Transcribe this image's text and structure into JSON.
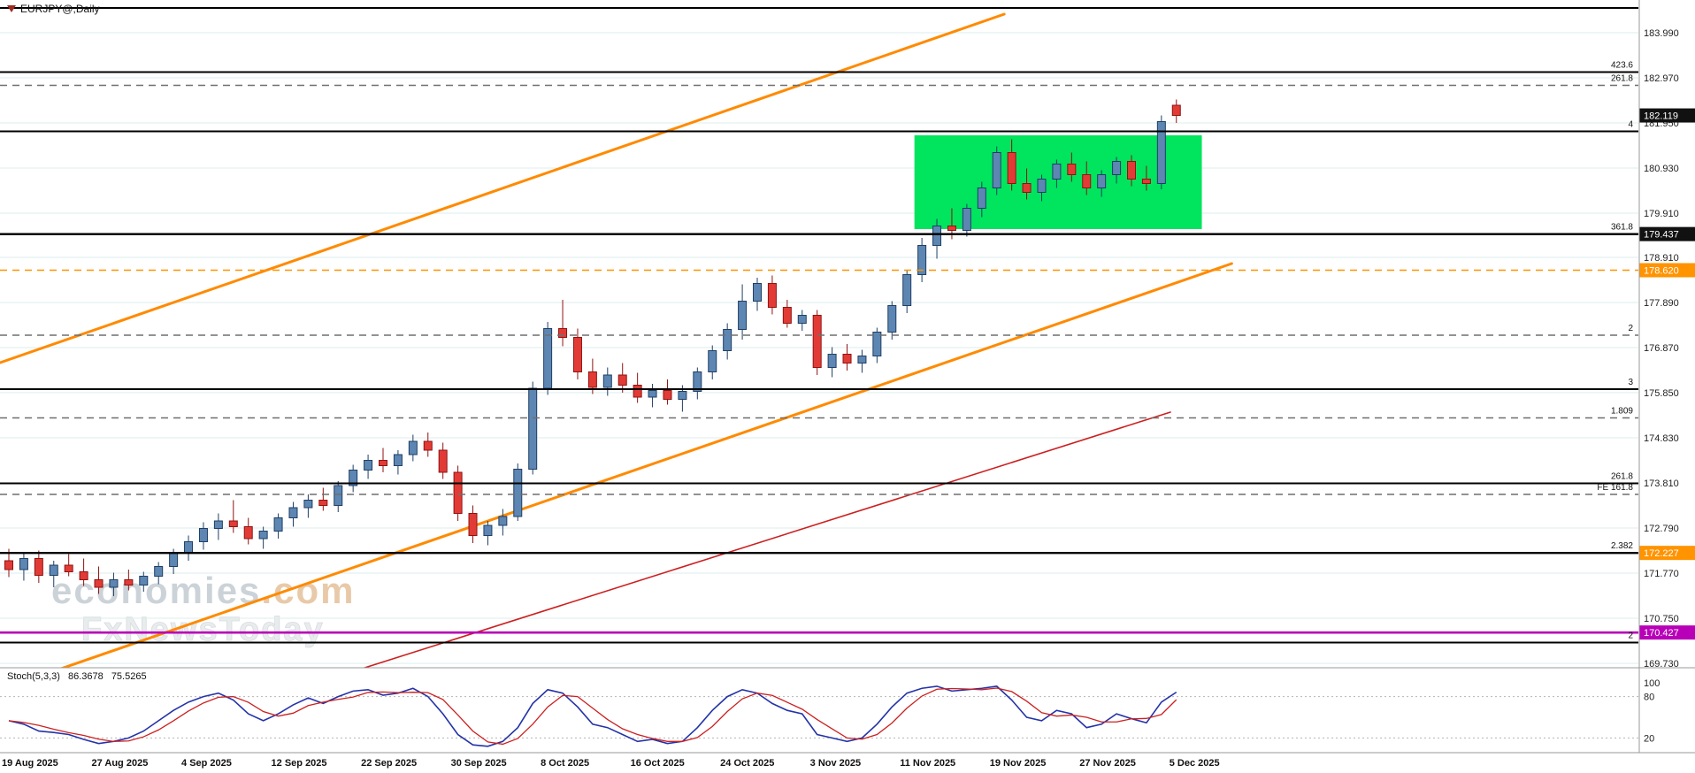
{
  "window": {
    "symbol_label": "EURJPY@,Daily"
  },
  "watermark": {
    "brand": "economies",
    "brand_suffix": ".com",
    "tagline": "FxNewsToday"
  },
  "colors": {
    "bull": "#5d86b3",
    "bullBorder": "#1f3f63",
    "bear": "#e23b36",
    "bearBorder": "#8f1310",
    "trendOrange": "#ff8a00",
    "trendRed": "#cc2020",
    "grid": "#ddeeee",
    "stochK": "#2433a8",
    "stochD": "#cc2020",
    "badgeBlack": "#111111",
    "badgeOrange": "#ff9300",
    "badgeMagenta": "#b800b8"
  },
  "chart_data": {
    "type": "candlestick",
    "symbol": "EURJPY@",
    "timeframe": "Daily",
    "ylim": [
      169.63,
      184.73
    ],
    "x_labels": [
      "19 Aug 2025",
      "27 Aug 2025",
      "4 Sep 2025",
      "12 Sep 2025",
      "22 Sep 2025",
      "30 Sep 2025",
      "8 Oct 2025",
      "16 Oct 2025",
      "24 Oct 2025",
      "3 Nov 2025",
      "11 Nov 2025",
      "19 Nov 2025",
      "27 Nov 2025",
      "5 Dec 2025"
    ],
    "x_label_step": 6,
    "price_ticks": [
      "183.990",
      "182.970",
      "181.950",
      "180.930",
      "179.910",
      "178.910",
      "177.890",
      "176.870",
      "175.850",
      "174.830",
      "173.810",
      "172.790",
      "171.770",
      "170.750",
      "169.730"
    ],
    "price_tick_values": [
      183.99,
      182.97,
      181.95,
      180.93,
      179.91,
      178.91,
      177.89,
      176.87,
      175.85,
      174.83,
      173.81,
      172.79,
      171.77,
      170.75,
      169.73
    ],
    "candles": [
      [
        172.05,
        172.32,
        171.68,
        171.85
      ],
      [
        171.85,
        172.22,
        171.6,
        172.1
      ],
      [
        172.1,
        172.28,
        171.55,
        171.72
      ],
      [
        171.72,
        172.05,
        171.45,
        171.95
      ],
      [
        171.95,
        172.2,
        171.7,
        171.8
      ],
      [
        171.8,
        172.1,
        171.48,
        171.62
      ],
      [
        171.62,
        171.92,
        171.3,
        171.45
      ],
      [
        171.45,
        171.78,
        171.25,
        171.62
      ],
      [
        171.62,
        171.85,
        171.38,
        171.5
      ],
      [
        171.5,
        171.8,
        171.35,
        171.7
      ],
      [
        171.7,
        172.02,
        171.52,
        171.92
      ],
      [
        171.92,
        172.32,
        171.75,
        172.22
      ],
      [
        172.22,
        172.62,
        172.05,
        172.48
      ],
      [
        172.48,
        172.92,
        172.3,
        172.78
      ],
      [
        172.78,
        173.12,
        172.52,
        172.95
      ],
      [
        172.95,
        173.42,
        172.68,
        172.82
      ],
      [
        172.82,
        173.02,
        172.42,
        172.55
      ],
      [
        172.55,
        172.82,
        172.32,
        172.72
      ],
      [
        172.72,
        173.12,
        172.55,
        173.02
      ],
      [
        173.02,
        173.38,
        172.82,
        173.25
      ],
      [
        173.25,
        173.55,
        173.02,
        173.42
      ],
      [
        173.42,
        173.7,
        173.18,
        173.3
      ],
      [
        173.3,
        173.85,
        173.15,
        173.75
      ],
      [
        173.75,
        174.22,
        173.6,
        174.1
      ],
      [
        174.1,
        174.45,
        173.9,
        174.32
      ],
      [
        174.32,
        174.6,
        174.05,
        174.2
      ],
      [
        174.2,
        174.55,
        174.0,
        174.45
      ],
      [
        174.45,
        174.9,
        174.3,
        174.75
      ],
      [
        174.75,
        174.95,
        174.4,
        174.55
      ],
      [
        174.55,
        174.72,
        173.9,
        174.05
      ],
      [
        174.05,
        174.2,
        172.95,
        173.12
      ],
      [
        173.12,
        173.3,
        172.45,
        172.62
      ],
      [
        172.62,
        172.95,
        172.4,
        172.85
      ],
      [
        172.85,
        173.22,
        172.62,
        173.05
      ],
      [
        173.05,
        174.25,
        172.95,
        174.12
      ],
      [
        174.12,
        176.1,
        174.0,
        175.95
      ],
      [
        175.95,
        177.45,
        175.8,
        177.3
      ],
      [
        177.3,
        177.95,
        176.9,
        177.1
      ],
      [
        177.1,
        177.3,
        176.15,
        176.32
      ],
      [
        176.32,
        176.62,
        175.82,
        175.97
      ],
      [
        175.97,
        176.42,
        175.78,
        176.25
      ],
      [
        176.25,
        176.52,
        175.85,
        176.02
      ],
      [
        176.02,
        176.3,
        175.62,
        175.75
      ],
      [
        175.75,
        176.05,
        175.52,
        175.9
      ],
      [
        175.9,
        176.15,
        175.58,
        175.7
      ],
      [
        175.7,
        176.02,
        175.42,
        175.88
      ],
      [
        175.88,
        176.42,
        175.7,
        176.32
      ],
      [
        176.32,
        176.92,
        176.15,
        176.8
      ],
      [
        176.8,
        177.42,
        176.6,
        177.28
      ],
      [
        177.28,
        178.3,
        177.05,
        177.92
      ],
      [
        177.92,
        178.45,
        177.7,
        178.32
      ],
      [
        178.32,
        178.5,
        177.62,
        177.78
      ],
      [
        177.78,
        177.95,
        177.32,
        177.42
      ],
      [
        177.42,
        177.72,
        177.25,
        177.6
      ],
      [
        177.6,
        177.72,
        176.25,
        176.42
      ],
      [
        176.42,
        176.88,
        176.2,
        176.72
      ],
      [
        176.72,
        176.95,
        176.35,
        176.52
      ],
      [
        176.52,
        176.82,
        176.3,
        176.68
      ],
      [
        176.68,
        177.32,
        176.52,
        177.22
      ],
      [
        177.22,
        177.92,
        177.05,
        177.82
      ],
      [
        177.82,
        178.62,
        177.65,
        178.52
      ],
      [
        178.52,
        179.35,
        178.35,
        179.18
      ],
      [
        179.18,
        179.78,
        178.88,
        179.62
      ],
      [
        179.62,
        180.02,
        179.32,
        179.52
      ],
      [
        179.52,
        180.12,
        179.38,
        180.02
      ],
      [
        180.02,
        180.62,
        179.82,
        180.48
      ],
      [
        180.48,
        181.42,
        180.32,
        181.28
      ],
      [
        181.28,
        181.58,
        180.42,
        180.58
      ],
      [
        180.58,
        180.92,
        180.22,
        180.38
      ],
      [
        180.38,
        180.78,
        180.18,
        180.68
      ],
      [
        180.68,
        181.12,
        180.48,
        181.02
      ],
      [
        181.02,
        181.28,
        180.62,
        180.78
      ],
      [
        180.78,
        181.08,
        180.32,
        180.48
      ],
      [
        180.48,
        180.88,
        180.28,
        180.78
      ],
      [
        180.78,
        181.18,
        180.58,
        181.08
      ],
      [
        181.08,
        181.22,
        180.52,
        180.68
      ],
      [
        180.68,
        180.98,
        180.42,
        180.58
      ],
      [
        180.58,
        182.12,
        180.45,
        181.98
      ],
      [
        182.35,
        182.48,
        181.95,
        182.12
      ]
    ],
    "hlines": [
      {
        "price": 184.55,
        "style": "solid",
        "color": "#000000",
        "w": 2,
        "label": ""
      },
      {
        "price": 183.1,
        "style": "solid",
        "color": "#000000",
        "w": 2,
        "label": "423.6"
      },
      {
        "price": 182.8,
        "style": "dashed",
        "color": "#6f6f6f",
        "w": 1.4,
        "label": "261.8"
      },
      {
        "price": 181.76,
        "style": "solid",
        "color": "#000000",
        "w": 2,
        "label": "4"
      },
      {
        "price": 179.437,
        "style": "solid",
        "color": "#000000",
        "w": 2.4,
        "label": "361.8",
        "badge": "179.437",
        "badge_color": "#111111"
      },
      {
        "price": 178.62,
        "style": "dashed",
        "color": "#ff9300",
        "w": 1.6,
        "label": "",
        "badge": "178.620",
        "badge_color": "#ff9300"
      },
      {
        "price": 177.15,
        "style": "dashed",
        "color": "#6f6f6f",
        "w": 1.4,
        "label": "2"
      },
      {
        "price": 175.93,
        "style": "solid",
        "color": "#000000",
        "w": 2,
        "label": "3"
      },
      {
        "price": 175.28,
        "style": "dashed",
        "color": "#6f6f6f",
        "w": 1.4,
        "label": "1.809"
      },
      {
        "price": 173.8,
        "style": "solid",
        "color": "#000000",
        "w": 2,
        "label": "261.8"
      },
      {
        "price": 173.55,
        "style": "dashed",
        "color": "#6f6f6f",
        "w": 1.4,
        "label": "FE 161.8"
      },
      {
        "price": 172.227,
        "style": "solid",
        "color": "#000000",
        "w": 2.4,
        "label": "2.382",
        "badge": "172.227",
        "badge_color": "#ff9300"
      },
      {
        "price": 170.427,
        "style": "solid",
        "color": "#b800b8",
        "w": 2.6,
        "label": "",
        "badge": "170.427",
        "badge_color": "#b800b8"
      },
      {
        "price": 170.2,
        "style": "solid",
        "color": "#000000",
        "w": 2,
        "label": "2"
      }
    ],
    "current_price": {
      "text": "182.119",
      "value": 182.119,
      "badge_color": "#111111"
    },
    "trendlines": [
      {
        "i1": -1,
        "p1": 176.48,
        "i2": 66.5,
        "p2": 184.41,
        "color": "#ff8a00",
        "w": 3
      },
      {
        "i1": 3.24,
        "p1": 169.58,
        "i2": 81.7,
        "p2": 178.77,
        "color": "#ff8a00",
        "w": 3
      },
      {
        "i1": 22.1,
        "p1": 169.45,
        "i2": 77.6,
        "p2": 175.41,
        "color": "#cc2020",
        "w": 1.6
      }
    ],
    "box": {
      "i1": 60.5,
      "p1": 179.55,
      "i2": 79.7,
      "p2": 181.67,
      "color": "#00e45e"
    },
    "stoch": {
      "label": "Stoch(5,3,3)",
      "value_main": "86.3678",
      "value_signal": "75.5265",
      "levels": [
        "100",
        "80",
        "20"
      ],
      "level_values": [
        100,
        80,
        20
      ],
      "k": [
        45,
        40,
        30,
        28,
        25,
        18,
        12,
        15,
        20,
        30,
        45,
        60,
        72,
        80,
        85,
        75,
        55,
        45,
        55,
        68,
        78,
        70,
        80,
        88,
        90,
        82,
        85,
        92,
        80,
        55,
        25,
        10,
        8,
        15,
        35,
        70,
        90,
        85,
        65,
        40,
        35,
        25,
        15,
        18,
        12,
        15,
        35,
        60,
        80,
        90,
        85,
        70,
        60,
        55,
        25,
        20,
        15,
        20,
        40,
        65,
        85,
        92,
        95,
        88,
        90,
        92,
        95,
        75,
        50,
        45,
        60,
        55,
        35,
        40,
        55,
        48,
        42,
        72,
        86.4
      ],
      "d": [
        45,
        42.5,
        38.3,
        32.7,
        27.7,
        23.7,
        18.3,
        15,
        15.7,
        21.7,
        31.7,
        45,
        59,
        70.7,
        79,
        80,
        71.7,
        58.3,
        51.7,
        56,
        67,
        72,
        76,
        79.3,
        86,
        86.7,
        85.7,
        86.3,
        85.7,
        75.7,
        53.3,
        30,
        14.3,
        11,
        19.3,
        40,
        65,
        81.7,
        80,
        63.3,
        46.7,
        33.3,
        25,
        19.3,
        15,
        15,
        20.7,
        36.7,
        58.3,
        76.7,
        85,
        81.7,
        71.7,
        61.7,
        46.7,
        33.3,
        20,
        18.3,
        25,
        41.7,
        63.3,
        80.7,
        90.7,
        91.7,
        91,
        90,
        92.3,
        87.3,
        73.3,
        56.7,
        51.7,
        53.3,
        50,
        43.3,
        43.3,
        47.7,
        48.3,
        54,
        75.5
      ]
    }
  }
}
